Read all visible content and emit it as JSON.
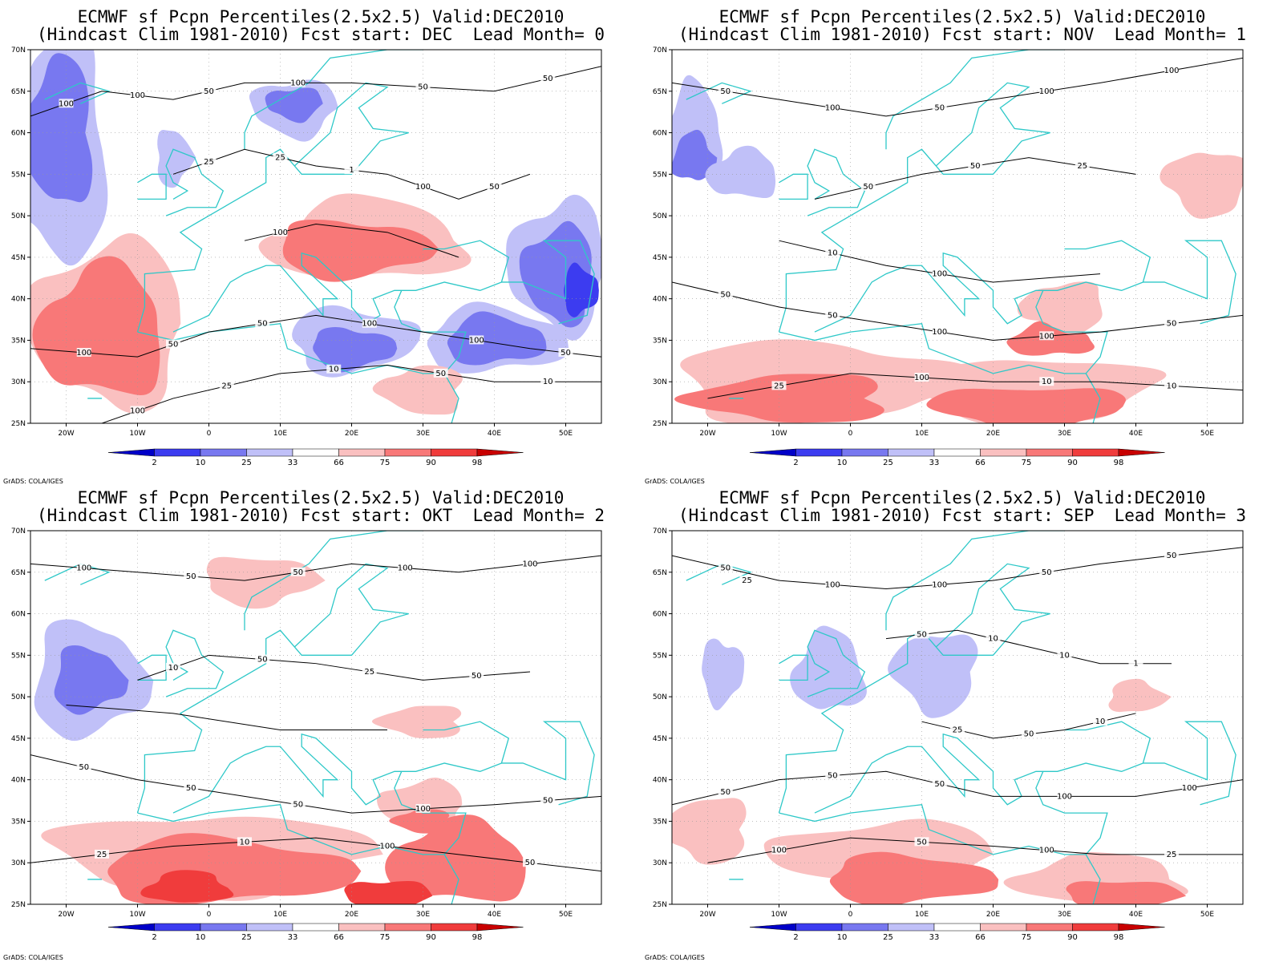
{
  "colors": {
    "p2": "#0000c8",
    "p10": "#3c3cf0",
    "p25": "#7878f0",
    "p33": "#c0c0f8",
    "mid": "#ffffff",
    "p66": "#fac0c0",
    "p75": "#f87878",
    "p90": "#f03c3c",
    "p98": "#c80000",
    "coast": "#2ec8c8",
    "contour": "#000000"
  },
  "lat_labels": [
    "70N",
    "65N",
    "60N",
    "55N",
    "50N",
    "45N",
    "40N",
    "35N",
    "30N",
    "25N"
  ],
  "lon_labels": [
    "20W",
    "10W",
    "0",
    "10E",
    "20E",
    "30E",
    "40E",
    "50E"
  ],
  "colorbar_labels": [
    "2",
    "10",
    "25",
    "33",
    "66",
    "75",
    "90",
    "98"
  ],
  "credit": "GrADS: COLA/IGES",
  "panels": [
    {
      "title_line1": "ECMWF sf Pcpn Percentiles(2.5x2.5) Valid:DEC2010",
      "title_line2": "(Hindcast Clim 1981-2010) Fcst start: DEC  Lead Month= 0",
      "contour_labels": [
        "100",
        "100",
        "50",
        "100",
        "50",
        "50",
        "100",
        "50",
        "50",
        "100",
        "100",
        "50",
        "100",
        "25",
        "10",
        "50",
        "10",
        "25",
        "25",
        "1",
        "100",
        "50",
        "100"
      ]
    },
    {
      "title_line1": "ECMWF sf Pcpn Percentiles(2.5x2.5) Valid:DEC2010",
      "title_line2": "(Hindcast Clim 1981-2010) Fcst start: NOV  Lead Month= 1",
      "contour_labels": [
        "50",
        "100",
        "50",
        "100",
        "100",
        "50",
        "50",
        "100",
        "100",
        "50",
        "25",
        "100",
        "10",
        "10",
        "50",
        "50",
        "25",
        "10",
        "100"
      ]
    },
    {
      "title_line1": "ECMWF sf Pcpn Percentiles(2.5x2.5) Valid:DEC2010",
      "title_line2": "(Hindcast Clim 1981-2010) Fcst start: OKT  Lead Month= 2",
      "contour_labels": [
        "100",
        "50",
        "50",
        "100",
        "100",
        "50",
        "50",
        "50",
        "100",
        "50",
        "25",
        "10",
        "100",
        "50",
        "10",
        "50",
        "25",
        "50"
      ]
    },
    {
      "title_line1": "ECMWF sf Pcpn Percentiles(2.5x2.5) Valid:DEC2010",
      "title_line2": "(Hindcast Clim 1981-2010) Fcst start: SEP  Lead Month= 3",
      "contour_labels": [
        "50",
        "100",
        "100",
        "50",
        "50",
        "50",
        "50",
        "50",
        "100",
        "100",
        "100",
        "50",
        "100",
        "25",
        "50",
        "10",
        "10",
        "1",
        "25",
        "50",
        "10",
        "25"
      ]
    }
  ]
}
